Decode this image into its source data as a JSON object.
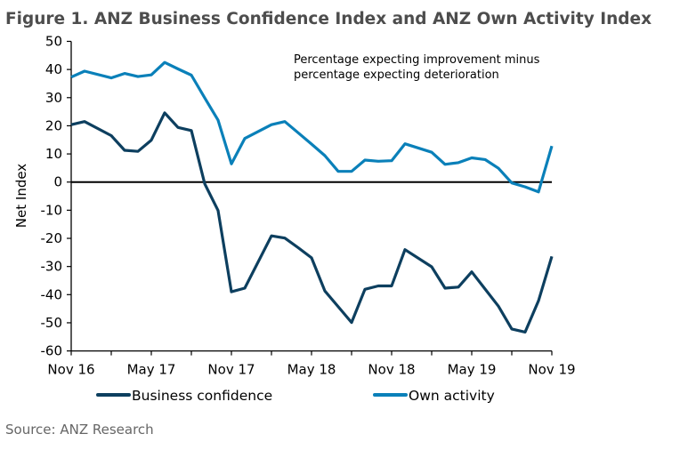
{
  "title": "Figure 1. ANZ Business Confidence Index and ANZ Own Activity Index",
  "source": "Source: ANZ Research",
  "chart_data": {
    "type": "line",
    "title": "Figure 1. ANZ Business Confidence Index and ANZ Own Activity Index",
    "ylabel": "Net Index",
    "xlabel": "",
    "annotation": [
      "Percentage expecting improvement minus",
      "percentage expecting deterioration"
    ],
    "ylim": [
      -60,
      50
    ],
    "yticks": [
      50,
      40,
      30,
      20,
      10,
      0,
      -10,
      -20,
      -30,
      -40,
      -50,
      -60
    ],
    "xrange": [
      "2016-11",
      "2019-11"
    ],
    "xtick_labels": [
      {
        "x": "2016-11",
        "label": "Nov 16"
      },
      {
        "x": "2017-05",
        "label": "May 17"
      },
      {
        "x": "2017-11",
        "label": "Nov 17"
      },
      {
        "x": "2018-05",
        "label": "May 18"
      },
      {
        "x": "2018-11",
        "label": "Nov 18"
      },
      {
        "x": "2019-05",
        "label": "May 19"
      },
      {
        "x": "2019-11",
        "label": "Nov 19"
      }
    ],
    "grid": false,
    "legend_position": "bottom",
    "x": [
      "2016-11",
      "2016-12",
      "2017-02",
      "2017-03",
      "2017-04",
      "2017-05",
      "2017-06",
      "2017-07",
      "2017-08",
      "2017-09",
      "2017-10",
      "2017-11",
      "2017-12",
      "2018-02",
      "2018-03",
      "2018-04",
      "2018-05",
      "2018-06",
      "2018-07",
      "2018-08",
      "2018-09",
      "2018-10",
      "2018-11",
      "2018-12",
      "2019-02",
      "2019-03",
      "2019-04",
      "2019-05",
      "2019-06",
      "2019-07",
      "2019-08",
      "2019-09",
      "2019-10",
      "2019-11"
    ],
    "series": [
      {
        "name": "Business confidence",
        "color": "#0d3f5f",
        "values": [
          20.4,
          21.5,
          16.5,
          11.3,
          10.9,
          14.9,
          24.6,
          19.4,
          18.3,
          -0.6,
          -10.1,
          -39.0,
          -37.7,
          -19.1,
          -19.9,
          -23.3,
          -26.9,
          -38.7,
          -44.3,
          -49.9,
          -38.1,
          -36.9,
          -36.9,
          -24.0,
          -30.1,
          -37.7,
          -37.3,
          -31.9,
          -38.0,
          -44.1,
          -52.2,
          -53.3,
          -42.2,
          -26.4
        ]
      },
      {
        "name": "Own activity",
        "color": "#0a80b9",
        "values": [
          37.3,
          39.4,
          37.0,
          38.6,
          37.5,
          38.1,
          42.5,
          40.2,
          38.0,
          29.9,
          22.0,
          6.5,
          15.5,
          20.4,
          21.5,
          17.5,
          13.5,
          9.4,
          3.8,
          3.8,
          7.8,
          7.4,
          7.6,
          13.6,
          10.6,
          6.3,
          6.9,
          8.6,
          8.0,
          4.9,
          -0.3,
          -1.7,
          -3.5,
          12.8
        ]
      }
    ]
  }
}
